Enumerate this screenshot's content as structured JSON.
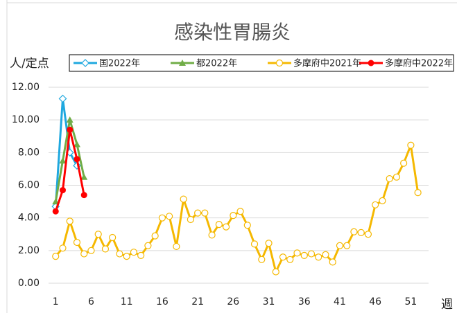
{
  "chart_data": {
    "type": "line",
    "title": "感染性胃腸炎",
    "y_label": "人/定点",
    "x_label": "週",
    "xlim": [
      0,
      53.5
    ],
    "xticks": [
      1,
      6,
      11,
      16,
      21,
      26,
      31,
      36,
      41,
      46,
      51
    ],
    "ylim": [
      0,
      12
    ],
    "yticks": [
      {
        "value": 0,
        "label": "0.00"
      },
      {
        "value": 2,
        "label": "2.00"
      },
      {
        "value": 4,
        "label": "4.00"
      },
      {
        "value": 6,
        "label": "6.00"
      },
      {
        "value": 8,
        "label": "8.00"
      },
      {
        "value": 10,
        "label": "10.00"
      },
      {
        "value": 12,
        "label": "12.00"
      }
    ],
    "grid": true,
    "legend": "top",
    "series": [
      {
        "name": "国2022年",
        "color": "#1fa8df",
        "marker": "diamond",
        "x": [
          1,
          2,
          3,
          4
        ],
        "values": [
          4.7,
          11.3,
          8.0,
          7.2
        ]
      },
      {
        "name": "都2022年",
        "color": "#70ad47",
        "marker": "triangle",
        "x": [
          1,
          2,
          3,
          4,
          5
        ],
        "values": [
          5.0,
          7.5,
          10.0,
          8.5,
          6.5
        ]
      },
      {
        "name": "多摩府中2021年",
        "color": "#f5b800",
        "marker": "circle-open",
        "x": [
          1,
          2,
          3,
          4,
          5,
          6,
          7,
          8,
          9,
          10,
          11,
          12,
          13,
          14,
          15,
          16,
          17,
          18,
          19,
          20,
          21,
          22,
          23,
          24,
          25,
          26,
          27,
          28,
          29,
          30,
          31,
          32,
          33,
          34,
          35,
          36,
          37,
          38,
          39,
          40,
          41,
          42,
          43,
          44,
          45,
          46,
          47,
          48,
          49,
          50,
          51,
          52
        ],
        "values": [
          1.65,
          2.15,
          3.8,
          2.5,
          1.8,
          2.0,
          3.0,
          2.1,
          2.8,
          1.8,
          1.65,
          1.9,
          1.7,
          2.3,
          2.9,
          4.0,
          4.1,
          2.25,
          5.15,
          3.9,
          4.3,
          4.3,
          2.95,
          3.6,
          3.45,
          4.15,
          4.4,
          3.55,
          2.4,
          1.45,
          2.45,
          0.7,
          1.6,
          1.45,
          1.85,
          1.7,
          1.8,
          1.6,
          1.75,
          1.3,
          2.3,
          2.3,
          3.15,
          3.1,
          3.0,
          4.8,
          5.05,
          6.4,
          6.5,
          7.35,
          8.45,
          5.55
        ]
      },
      {
        "name": "多摩府中2022年",
        "color": "#ff0000",
        "marker": "circle",
        "x": [
          1,
          2,
          3,
          4,
          5
        ],
        "values": [
          4.4,
          5.7,
          9.4,
          7.6,
          5.4
        ]
      }
    ]
  }
}
